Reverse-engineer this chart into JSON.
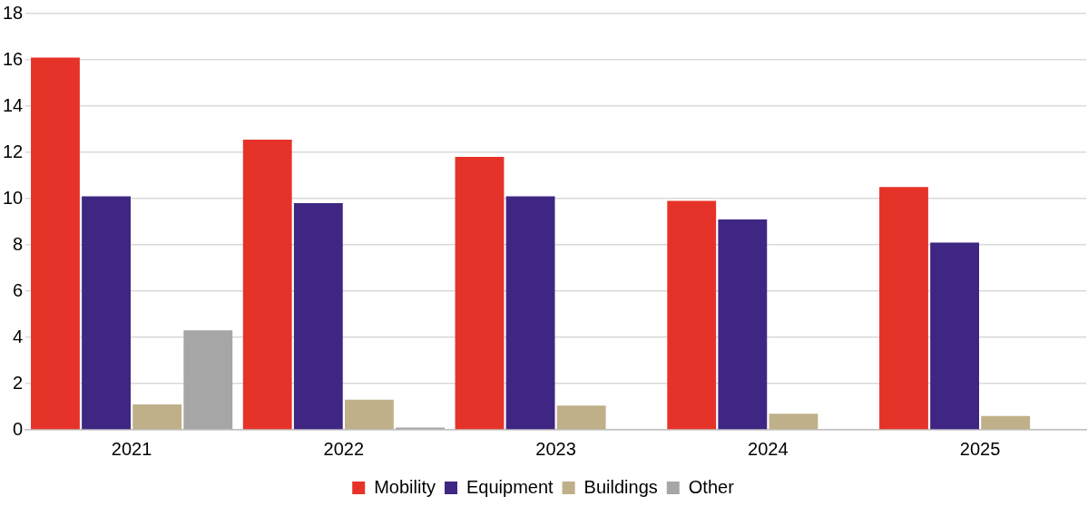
{
  "chart_data": {
    "type": "bar",
    "categories": [
      "2021",
      "2022",
      "2023",
      "2024",
      "2025"
    ],
    "series": [
      {
        "name": "Mobility",
        "color": "#e63329",
        "values": [
          16.1,
          12.55,
          11.8,
          9.9,
          10.5
        ]
      },
      {
        "name": "Equipment",
        "color": "#3f2682",
        "values": [
          10.1,
          9.8,
          10.1,
          9.1,
          8.1
        ]
      },
      {
        "name": "Buildings",
        "color": "#bfb08a",
        "values": [
          1.1,
          1.3,
          1.05,
          0.7,
          0.6
        ]
      },
      {
        "name": "Other",
        "color": "#a6a6a6",
        "values": [
          4.3,
          0.1,
          null,
          null,
          null
        ]
      }
    ],
    "ylim": [
      0,
      18
    ],
    "yticks": [
      0,
      2,
      4,
      6,
      8,
      10,
      12,
      14,
      16,
      18
    ],
    "grid": "y",
    "legend": "bottom"
  }
}
